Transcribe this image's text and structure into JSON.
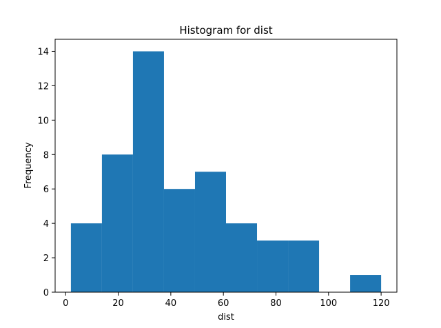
{
  "chart_data": {
    "type": "bar",
    "title": "Histogram for dist",
    "xlabel": "dist",
    "ylabel": "Frequency",
    "bin_edges": [
      2,
      13.8,
      25.6,
      37.4,
      49.2,
      61,
      72.8,
      84.6,
      96.4,
      108.2,
      120
    ],
    "values": [
      4,
      8,
      14,
      6,
      7,
      4,
      3,
      3,
      0,
      1
    ],
    "xlim": [
      -4,
      126
    ],
    "ylim": [
      0,
      14.7
    ],
    "xticks": [
      0,
      20,
      40,
      60,
      80,
      100,
      120
    ],
    "yticks": [
      0,
      2,
      4,
      6,
      8,
      10,
      12,
      14
    ],
    "grid": false,
    "bar_color": "#1f77b4"
  }
}
